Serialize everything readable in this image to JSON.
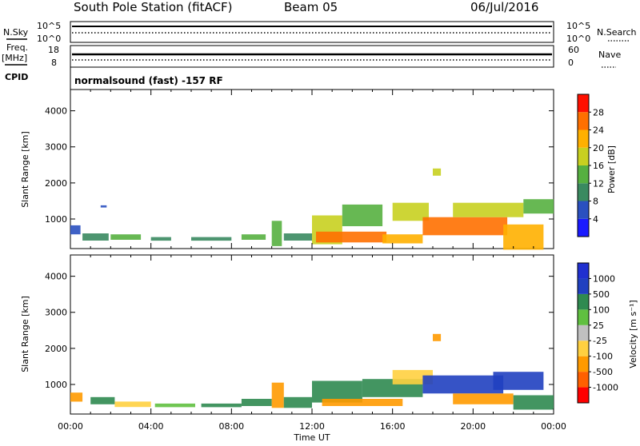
{
  "header": {
    "title": "South Pole Station (fitACF)",
    "beam": "Beam 05",
    "date": "06/Jul/2016"
  },
  "strips": {
    "nsky_label": "N.Sky",
    "nsearch_label": "N.Search",
    "nsky_ticks": [
      "10^5",
      "10^0"
    ],
    "nsearch_ticks": [
      "10^5",
      "10^0"
    ],
    "freq_label_1": "Freq.",
    "freq_label_2": "[MHz]",
    "freq_ticks": [
      "18",
      "8"
    ],
    "nave_label": "Nave",
    "nave_ticks": [
      "60",
      "0"
    ],
    "cpid_label": "CPID",
    "cpid_text": "normalsound (fast) -157 RF"
  },
  "colors": {
    "power": [
      "#1a1aff",
      "#2a50c0",
      "#3a8a60",
      "#56b040",
      "#c8d020",
      "#ffb000",
      "#ff7000",
      "#ff1000"
    ],
    "velocity": [
      "#ff0000",
      "#ff6000",
      "#ff9a00",
      "#ffd040",
      "#c0c0c0",
      "#60c040",
      "#2f8a50",
      "#2040c0",
      "#2030d0"
    ]
  },
  "chart_data": [
    {
      "type": "heatmap",
      "name": "power-panel",
      "ylabel": "Slant Range [km]",
      "ylim": [
        180,
        4590
      ],
      "yticks": [
        "1000",
        "2000",
        "3000",
        "4000"
      ],
      "ytick_values": [
        1000,
        2000,
        3000,
        4000
      ],
      "xlim": [
        0,
        24
      ],
      "colorbar_label": "Power [dB]",
      "colorbar_ticks": [
        "4",
        "8",
        "12",
        "16",
        "20",
        "24",
        "28"
      ],
      "colorbar_range": [
        0,
        32
      ],
      "cells": [
        {
          "x": 0.0,
          "r": 700,
          "w": 0.5,
          "h": 250,
          "v": 7
        },
        {
          "x": 0.6,
          "r": 500,
          "w": 1.3,
          "h": 200,
          "v": 10
        },
        {
          "x": 1.5,
          "r": 1350,
          "w": 0.3,
          "h": 60,
          "v": 6
        },
        {
          "x": 2.0,
          "r": 500,
          "w": 1.5,
          "h": 150,
          "v": 12
        },
        {
          "x": 4.0,
          "r": 450,
          "w": 1.0,
          "h": 100,
          "v": 9
        },
        {
          "x": 6.0,
          "r": 450,
          "w": 2.0,
          "h": 100,
          "v": 11
        },
        {
          "x": 8.5,
          "r": 500,
          "w": 1.2,
          "h": 150,
          "v": 13
        },
        {
          "x": 10.0,
          "r": 600,
          "w": 0.5,
          "h": 700,
          "v": 14
        },
        {
          "x": 10.6,
          "r": 500,
          "w": 1.4,
          "h": 200,
          "v": 10
        },
        {
          "x": 12.0,
          "r": 700,
          "w": 1.5,
          "h": 800,
          "v": 16
        },
        {
          "x": 12.2,
          "r": 500,
          "w": 3.5,
          "h": 300,
          "v": 26
        },
        {
          "x": 13.5,
          "r": 1100,
          "w": 2.0,
          "h": 600,
          "v": 14
        },
        {
          "x": 15.5,
          "r": 450,
          "w": 2.0,
          "h": 250,
          "v": 22
        },
        {
          "x": 16.0,
          "r": 1200,
          "w": 1.8,
          "h": 500,
          "v": 18
        },
        {
          "x": 17.5,
          "r": 800,
          "w": 4.2,
          "h": 500,
          "v": 27
        },
        {
          "x": 18.0,
          "r": 2300,
          "w": 0.4,
          "h": 200,
          "v": 17
        },
        {
          "x": 19.0,
          "r": 1250,
          "w": 3.5,
          "h": 400,
          "v": 18
        },
        {
          "x": 21.5,
          "r": 500,
          "w": 2.0,
          "h": 700,
          "v": 22
        },
        {
          "x": 22.5,
          "r": 1350,
          "w": 1.5,
          "h": 400,
          "v": 12
        }
      ]
    },
    {
      "type": "heatmap",
      "name": "velocity-panel",
      "ylabel": "Slant Range [km]",
      "xlabel": "Time UT",
      "ylim": [
        180,
        4590
      ],
      "yticks": [
        "1000",
        "2000",
        "3000",
        "4000"
      ],
      "ytick_values": [
        1000,
        2000,
        3000,
        4000
      ],
      "xlim": [
        0,
        24
      ],
      "xticks": [
        "00:00",
        "04:00",
        "08:00",
        "12:00",
        "16:00",
        "20:00",
        "00:00"
      ],
      "xtick_values": [
        0,
        4,
        8,
        12,
        16,
        20,
        24
      ],
      "colorbar_label": "Velocity [m s⁻¹]",
      "colorbar_ticks": [
        "1000",
        "500",
        "100",
        "25",
        "-25",
        "-100",
        "-500",
        "-1000"
      ],
      "cells": [
        {
          "x": 0.0,
          "r": 650,
          "w": 0.6,
          "h": 250,
          "v": -300
        },
        {
          "x": 1.0,
          "r": 550,
          "w": 1.2,
          "h": 200,
          "v": 200
        },
        {
          "x": 2.2,
          "r": 450,
          "w": 1.8,
          "h": 150,
          "v": -60
        },
        {
          "x": 4.2,
          "r": 420,
          "w": 2.0,
          "h": 100,
          "v": 40
        },
        {
          "x": 6.5,
          "r": 420,
          "w": 2.0,
          "h": 100,
          "v": 150
        },
        {
          "x": 8.5,
          "r": 500,
          "w": 1.5,
          "h": 200,
          "v": 120
        },
        {
          "x": 10.0,
          "r": 700,
          "w": 0.6,
          "h": 700,
          "v": -150
        },
        {
          "x": 10.6,
          "r": 500,
          "w": 1.4,
          "h": 300,
          "v": 200
        },
        {
          "x": 12.0,
          "r": 800,
          "w": 2.5,
          "h": 600,
          "v": 300
        },
        {
          "x": 12.5,
          "r": 500,
          "w": 4.0,
          "h": 200,
          "v": -200
        },
        {
          "x": 14.5,
          "r": 900,
          "w": 3.0,
          "h": 500,
          "v": 250
        },
        {
          "x": 16.0,
          "r": 1200,
          "w": 2.0,
          "h": 400,
          "v": -80
        },
        {
          "x": 17.5,
          "r": 1000,
          "w": 4.0,
          "h": 500,
          "v": 800
        },
        {
          "x": 18.0,
          "r": 2300,
          "w": 0.4,
          "h": 200,
          "v": -150
        },
        {
          "x": 19.0,
          "r": 600,
          "w": 3.0,
          "h": 300,
          "v": -120
        },
        {
          "x": 21.0,
          "r": 1100,
          "w": 2.5,
          "h": 500,
          "v": 900
        },
        {
          "x": 22.0,
          "r": 500,
          "w": 2.0,
          "h": 400,
          "v": 300
        }
      ]
    }
  ]
}
